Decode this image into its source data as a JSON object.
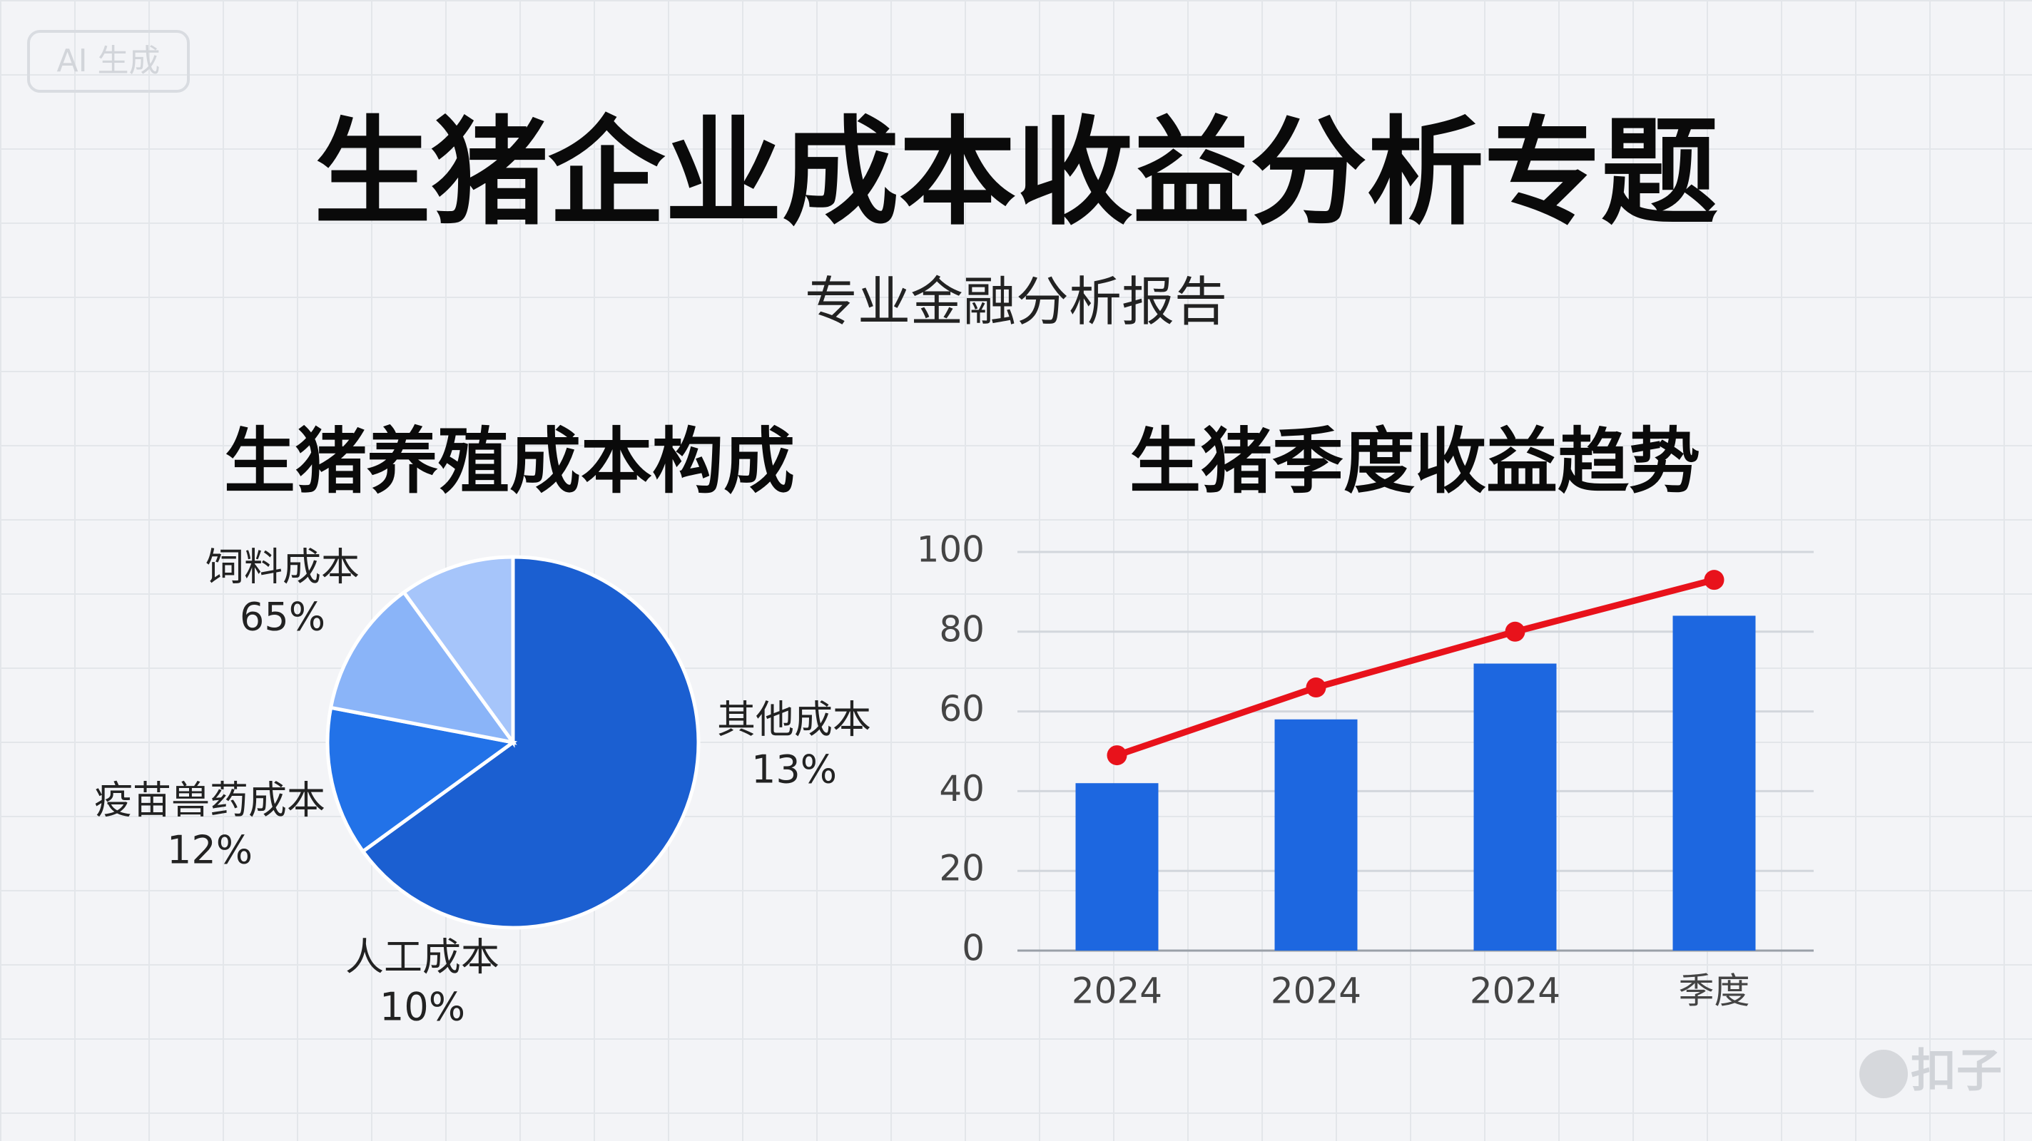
{
  "header": {
    "badge": "AI 生成",
    "title": "生猪企业成本收益分析专题",
    "subtitle": "专业金融分析报告"
  },
  "watermark": "扣子",
  "chart_data": [
    {
      "type": "pie",
      "title": "生猪养殖成本构成",
      "categories": [
        "饲料成本",
        "其他成本",
        "疫苗兽药成本",
        "人工成本"
      ],
      "values": [
        65,
        13,
        12,
        10
      ],
      "value_labels": [
        "65%",
        "13%",
        "12%",
        "10%"
      ],
      "colors": [
        "#1b5fd1",
        "#2272e8",
        "#8ab4f8",
        "#a6c5fa"
      ]
    },
    {
      "type": "bar-line",
      "title": "生猪季度收益趋势",
      "categories": [
        "2024",
        "2024",
        "2024",
        "季度"
      ],
      "series": [
        {
          "type": "bar",
          "color": "#1d67e0",
          "values": [
            42,
            58,
            72,
            84
          ]
        },
        {
          "type": "line",
          "color": "#e8121b",
          "values": [
            49,
            66,
            80,
            93
          ]
        }
      ],
      "ylim": [
        0,
        100
      ],
      "yticks": [
        0,
        20,
        40,
        60,
        80,
        100
      ],
      "grid": true
    }
  ]
}
